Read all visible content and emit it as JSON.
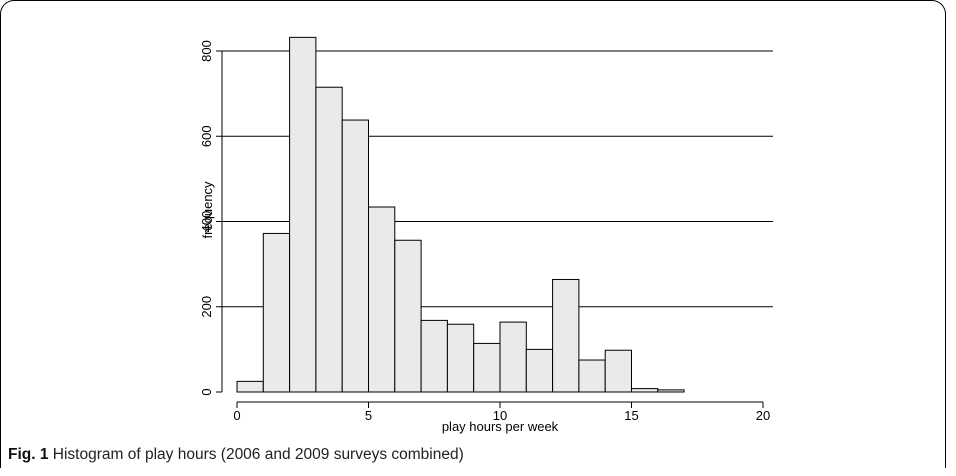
{
  "caption": {
    "label": "Fig. 1",
    "text": "Histogram of play hours (2006 and 2009 surveys combined)"
  },
  "chart_data": {
    "type": "bar",
    "xlabel": "play hours per week",
    "ylabel": "frequency",
    "xlim": [
      0,
      20
    ],
    "ylim": [
      0,
      800
    ],
    "xticks": [
      0,
      5,
      10,
      15,
      20
    ],
    "yticks": [
      0,
      200,
      400,
      600,
      800
    ],
    "grid": "horizontal",
    "bin_width": 1,
    "bins": [
      {
        "start": 0,
        "value": 25
      },
      {
        "start": 1,
        "value": 372
      },
      {
        "start": 2,
        "value": 832
      },
      {
        "start": 3,
        "value": 715
      },
      {
        "start": 4,
        "value": 638
      },
      {
        "start": 5,
        "value": 434
      },
      {
        "start": 6,
        "value": 356
      },
      {
        "start": 7,
        "value": 168
      },
      {
        "start": 8,
        "value": 159
      },
      {
        "start": 9,
        "value": 114
      },
      {
        "start": 10,
        "value": 164
      },
      {
        "start": 11,
        "value": 100
      },
      {
        "start": 12,
        "value": 264
      },
      {
        "start": 13,
        "value": 75
      },
      {
        "start": 14,
        "value": 98
      },
      {
        "start": 15,
        "value": 8
      },
      {
        "start": 16,
        "value": 5
      }
    ],
    "colors": {
      "bar_fill": "#eaeaea",
      "bar_stroke": "#000000",
      "grid": "#000000"
    }
  }
}
